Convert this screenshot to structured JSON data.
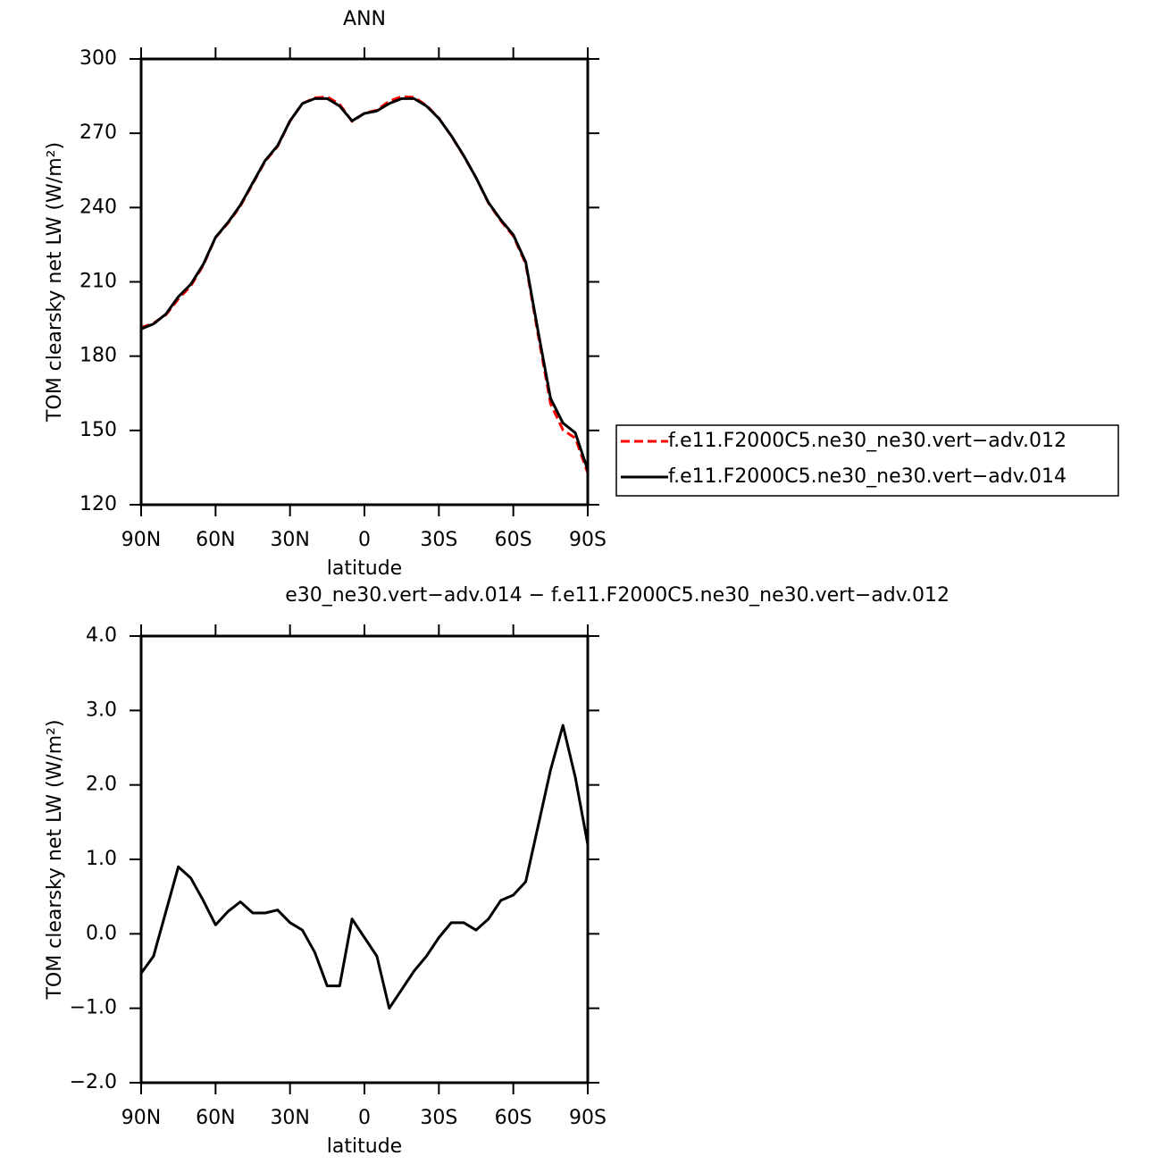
{
  "chart_data": [
    {
      "type": "line",
      "title": "ANN",
      "x_label": "latitude",
      "y_label": "TOM clearsky net LW (W/m²)",
      "x": [
        90,
        85,
        80,
        75,
        70,
        65,
        60,
        55,
        50,
        45,
        40,
        35,
        30,
        25,
        20,
        15,
        10,
        5,
        0,
        -5,
        -10,
        -15,
        -20,
        -25,
        -30,
        -35,
        -40,
        -45,
        -50,
        -55,
        -60,
        -65,
        -70,
        -75,
        -80,
        -85,
        -90
      ],
      "xlim": [
        90,
        -90
      ],
      "xticks": [
        {
          "value": 90,
          "label": "90N"
        },
        {
          "value": 60,
          "label": "60N"
        },
        {
          "value": 30,
          "label": "30N"
        },
        0,
        {
          "value": -30,
          "label": "30S"
        },
        {
          "value": -60,
          "label": "60S"
        },
        {
          "value": -90,
          "label": "90S"
        }
      ],
      "ylim": [
        120,
        300
      ],
      "yticks": [
        120,
        150,
        180,
        210,
        240,
        270,
        300
      ],
      "legend": "outside-right",
      "series": [
        {
          "name": "f.e11.F2000C5.ne30_ne30.vert−adv.012",
          "color": "#ff0000",
          "dash": true,
          "values": [
            191.5,
            193.3,
            196.7,
            203.1,
            208.3,
            216.6,
            227.9,
            233.7,
            240.6,
            249.7,
            258.7,
            264.7,
            274.9,
            282,
            284.3,
            284.7,
            281.7,
            274.8,
            278.1,
            279.3,
            283,
            284.8,
            284.5,
            281.3,
            276.1,
            268.9,
            260.9,
            252,
            241.8,
            234.6,
            228.5,
            217.3,
            188.6,
            160.8,
            150.2,
            146.9,
            132.8
          ]
        },
        {
          "name": "f.e11.F2000C5.ne30_ne30.vert−adv.014",
          "color": "#000000",
          "dash": false,
          "values": [
            191,
            193,
            197,
            204,
            209,
            217,
            228,
            234,
            241,
            250,
            259,
            265,
            275,
            282,
            284,
            284,
            281,
            275,
            278,
            279,
            282,
            284,
            284,
            281,
            276,
            269,
            261,
            252,
            242,
            235,
            229,
            218,
            190,
            163,
            153,
            149,
            134
          ]
        }
      ]
    },
    {
      "type": "line",
      "title": "e30_ne30.vert−adv.014 − f.e11.F2000C5.ne30_ne30.vert−adv.012",
      "x_label": "latitude",
      "y_label": "TOM clearsky net LW (W/m²)",
      "x": [
        90,
        85,
        80,
        75,
        70,
        65,
        60,
        55,
        50,
        45,
        40,
        35,
        30,
        25,
        20,
        15,
        10,
        5,
        0,
        -5,
        -10,
        -15,
        -20,
        -25,
        -30,
        -35,
        -40,
        -45,
        -50,
        -55,
        -60,
        -65,
        -70,
        -75,
        -80,
        -85,
        -90
      ],
      "xlim": [
        90,
        -90
      ],
      "xticks": [
        {
          "value": 90,
          "label": "90N"
        },
        {
          "value": 60,
          "label": "60N"
        },
        {
          "value": 30,
          "label": "30N"
        },
        0,
        {
          "value": -30,
          "label": "30S"
        },
        {
          "value": -60,
          "label": "60S"
        },
        {
          "value": -90,
          "label": "90S"
        }
      ],
      "ylim": [
        -2,
        4
      ],
      "yticks": [
        {
          "value": -2,
          "label": "−2.0"
        },
        {
          "value": -1,
          "label": "−1.0"
        },
        {
          "value": 0,
          "label": "0.0"
        },
        {
          "value": 1,
          "label": "1.0"
        },
        {
          "value": 2,
          "label": "2.0"
        },
        {
          "value": 3,
          "label": "3.0"
        },
        {
          "value": 4,
          "label": "4.0"
        }
      ],
      "color": "#000000",
      "values": [
        -0.53,
        -0.3,
        0.3,
        0.9,
        0.75,
        0.45,
        0.12,
        0.3,
        0.43,
        0.28,
        0.28,
        0.32,
        0.15,
        0.05,
        -0.25,
        -0.7,
        -0.7,
        0.2,
        -0.05,
        -0.3,
        -1.0,
        -0.75,
        -0.5,
        -0.3,
        -0.05,
        0.15,
        0.15,
        0.05,
        0.2,
        0.45,
        0.52,
        0.7,
        1.45,
        2.2,
        2.8,
        2.1,
        1.2
      ]
    }
  ]
}
